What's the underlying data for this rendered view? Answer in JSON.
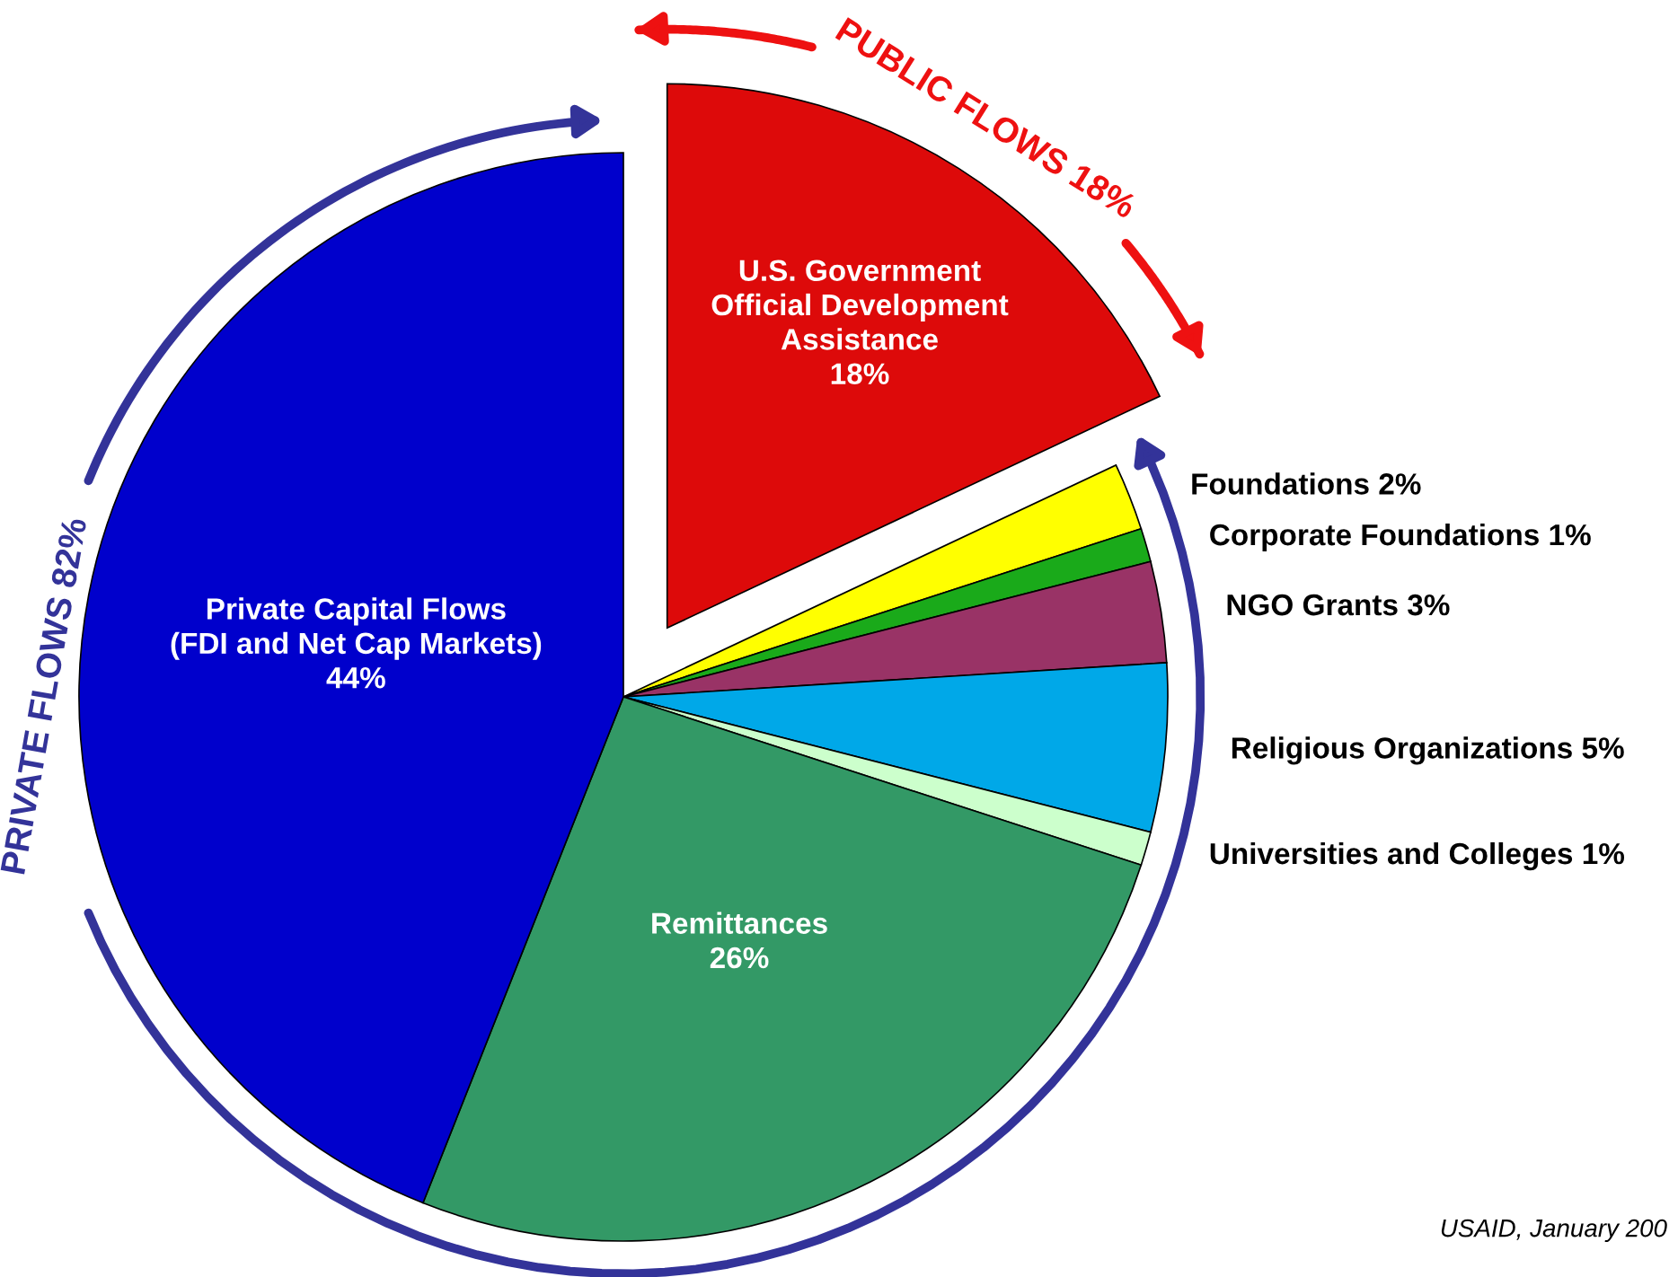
{
  "chart_data": {
    "type": "pie",
    "categories": [
      "U.S. Government\nOfficial Development\nAssistance",
      "Foundations",
      "Corporate Foundations",
      "NGO Grants",
      "Religious Organizations",
      "Universities and Colleges",
      "Remittances",
      "Private Capital Flows\n(FDI and Net Cap Markets)"
    ],
    "values": [
      18,
      2,
      1,
      3,
      5,
      1,
      26,
      44
    ],
    "value_labels": [
      "18%",
      "2%",
      "1%",
      "3%",
      "5%",
      "1%",
      "26%",
      "44%"
    ],
    "colors": [
      "#dd0a0a",
      "#ffff00",
      "#1aaa1a",
      "#993366",
      "#00a8e8",
      "#ccffcc",
      "#339966",
      "#0000cc"
    ],
    "annotations": [
      "PUBLIC FLOWS 18%",
      "PRIVATE FLOWS 82%",
      "USAID, January 200"
    ]
  }
}
